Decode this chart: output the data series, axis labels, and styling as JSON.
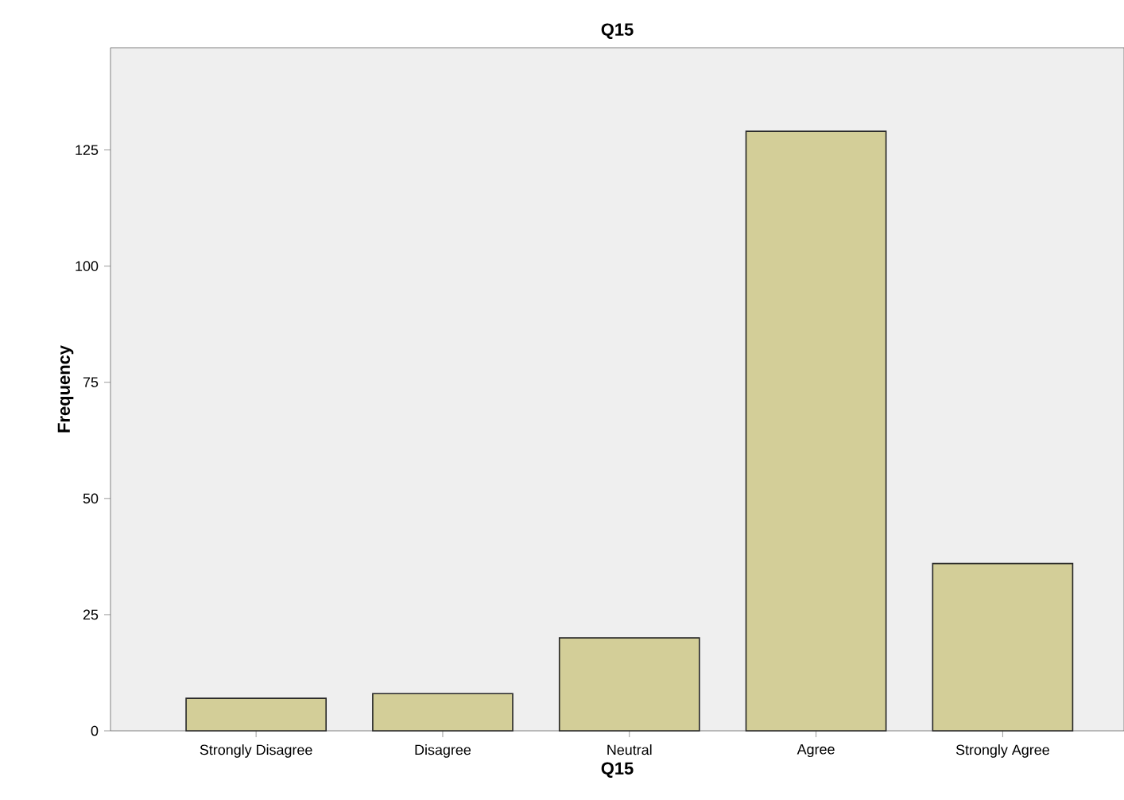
{
  "chart_data": {
    "type": "bar",
    "title": "Q15",
    "xlabel": "Q15",
    "ylabel": "Frequency",
    "categories": [
      "Strongly Disagree",
      "Disagree",
      "Neutral",
      "Agree",
      "Strongly Agree"
    ],
    "values": [
      7,
      8,
      20,
      129,
      36
    ],
    "color": "#d3ce98",
    "ylim": [
      0,
      147
    ],
    "yticks": [
      0,
      25,
      50,
      75,
      100,
      125
    ],
    "grid": false
  }
}
